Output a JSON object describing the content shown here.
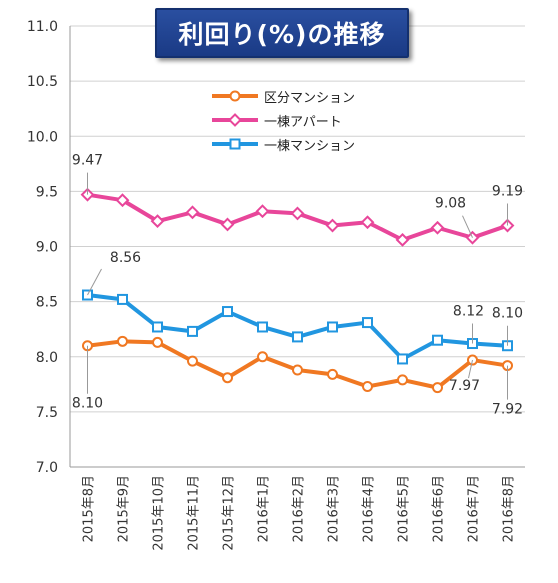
{
  "chart_data": {
    "type": "line",
    "title": "利回り(%)の推移",
    "categories": [
      "2015年8月",
      "2015年9月",
      "2015年10月",
      "2015年11月",
      "2015年12月",
      "2016年1月",
      "2016年2月",
      "2016年3月",
      "2016年4月",
      "2016年5月",
      "2016年6月",
      "2016年7月",
      "2016年8月"
    ],
    "ylim": [
      7.0,
      11.0
    ],
    "yticks": [
      "7.0",
      "7.5",
      "8.0",
      "8.5",
      "9.0",
      "9.5",
      "10.0",
      "10.5",
      "11.0"
    ],
    "grid": true,
    "legend_position": "top-center",
    "series": [
      {
        "name": "区分マンション",
        "color": "#f07822",
        "marker": "circle",
        "values": [
          8.1,
          8.14,
          8.13,
          7.96,
          7.81,
          8.0,
          7.88,
          7.84,
          7.73,
          7.79,
          7.72,
          7.97,
          7.92
        ]
      },
      {
        "name": "一棟アパート",
        "color": "#e8469a",
        "marker": "diamond",
        "values": [
          9.47,
          9.42,
          9.23,
          9.31,
          9.2,
          9.32,
          9.3,
          9.19,
          9.22,
          9.06,
          9.17,
          9.08,
          9.19
        ]
      },
      {
        "name": "一棟マンション",
        "color": "#2196e0",
        "marker": "square",
        "values": [
          8.56,
          8.52,
          8.27,
          8.23,
          8.41,
          8.27,
          8.18,
          8.27,
          8.31,
          7.98,
          8.15,
          8.12,
          8.1
        ]
      }
    ],
    "annotations": [
      {
        "label": "9.47",
        "series": 1,
        "index": 0
      },
      {
        "label": "9.08",
        "series": 1,
        "index": 11
      },
      {
        "label": "9.19",
        "series": 1,
        "index": 12
      },
      {
        "label": "8.56",
        "series": 2,
        "index": 0
      },
      {
        "label": "8.12",
        "series": 2,
        "index": 11
      },
      {
        "label": "8.10",
        "series": 2,
        "index": 12
      },
      {
        "label": "8.10",
        "series": 0,
        "index": 0
      },
      {
        "label": "7.97",
        "series": 0,
        "index": 11
      },
      {
        "label": "7.92",
        "series": 0,
        "index": 12
      }
    ]
  }
}
